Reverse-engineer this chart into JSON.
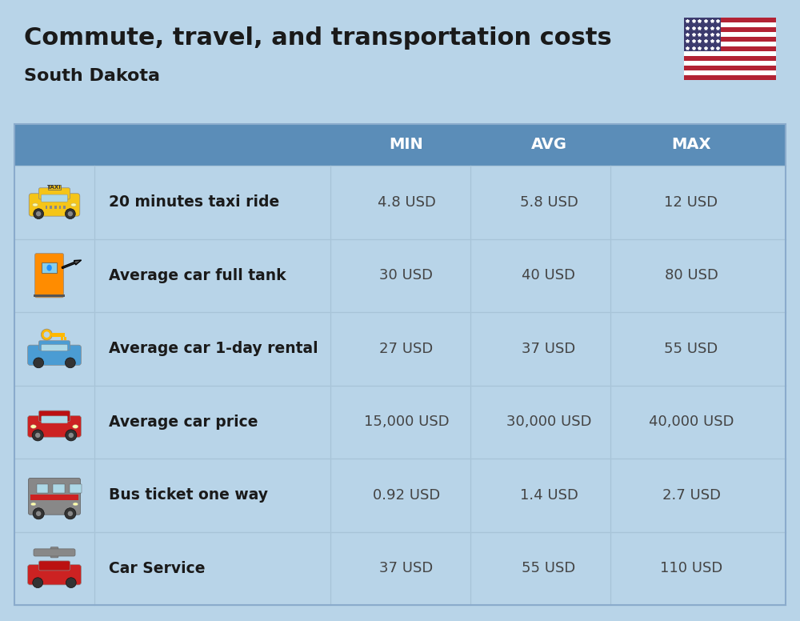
{
  "title": "Commute, travel, and transportation costs",
  "subtitle": "South Dakota",
  "background_color": "#b8d4e8",
  "header_color": "#5b8db8",
  "header_text_color": "#ffffff",
  "row_label_color": "#1a1a1a",
  "value_color": "#444444",
  "col_headers": [
    "MIN",
    "AVG",
    "MAX"
  ],
  "rows": [
    {
      "label": "20 minutes taxi ride",
      "min": "4.8 USD",
      "avg": "5.8 USD",
      "max": "12 USD"
    },
    {
      "label": "Average car full tank",
      "min": "30 USD",
      "avg": "40 USD",
      "max": "80 USD"
    },
    {
      "label": "Average car 1-day rental",
      "min": "27 USD",
      "avg": "37 USD",
      "max": "55 USD"
    },
    {
      "label": "Average car price",
      "min": "15,000 USD",
      "avg": "30,000 USD",
      "max": "40,000 USD"
    },
    {
      "label": "Bus ticket one way",
      "min": "0.92 USD",
      "avg": "1.4 USD",
      "max": "2.7 USD"
    },
    {
      "label": "Car Service",
      "min": "37 USD",
      "avg": "55 USD",
      "max": "110 USD"
    }
  ],
  "title_fontsize": 22,
  "subtitle_fontsize": 16,
  "header_fontsize": 14,
  "label_fontsize": 13.5,
  "value_fontsize": 13
}
